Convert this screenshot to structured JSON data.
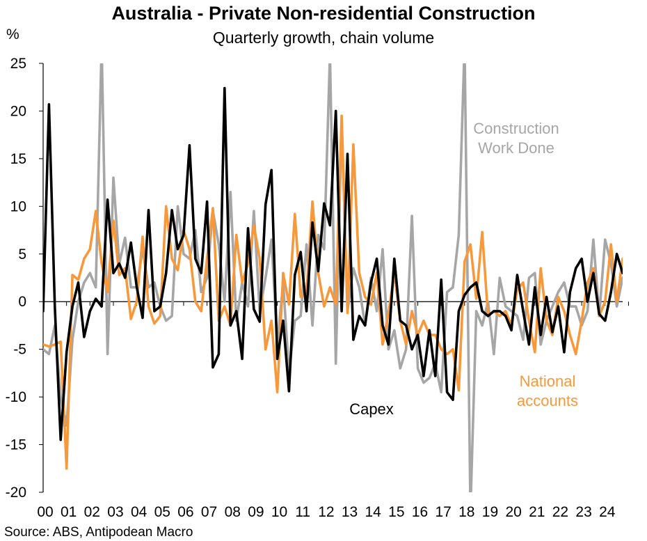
{
  "chart_data": {
    "type": "line",
    "title": "Australia - Private Non-residential Construction",
    "subtitle": "Quarterly growth, chain volume",
    "ylabel": "%",
    "xlabel": "",
    "ylim": [
      -20,
      25
    ],
    "yticks": [
      25,
      20,
      15,
      10,
      5,
      0,
      -5,
      -10,
      -15,
      -20
    ],
    "year_labels": [
      "00",
      "01",
      "02",
      "03",
      "04",
      "05",
      "06",
      "07",
      "08",
      "09",
      "10",
      "11",
      "12",
      "13",
      "14",
      "15",
      "16",
      "17",
      "18",
      "19",
      "20",
      "21",
      "22",
      "23",
      "24"
    ],
    "x_start": 2000.0,
    "x_step": 0.25,
    "source": "Source: ABS, Antipodean Macro",
    "colors": {
      "capex": "#000000",
      "national": "#f7993b",
      "work_done": "#a6a6a6",
      "axis": "#000000"
    },
    "annotations": [
      {
        "key": "work_done",
        "lines": [
          "Construction",
          "Work Done"
        ]
      },
      {
        "key": "national",
        "lines": [
          "National",
          "accounts"
        ]
      },
      {
        "key": "capex",
        "lines": [
          "Capex"
        ]
      }
    ],
    "series": [
      {
        "key": "work_done",
        "name": "Construction Work Done",
        "values": [
          -5.0,
          -5.5,
          -2.5,
          -10.0,
          -13.0,
          -4.0,
          0.0,
          2.0,
          3.0,
          1.5,
          27.0,
          -5.5,
          13.0,
          4.0,
          6.7,
          1.5,
          1.5,
          5.5,
          1.5,
          2.0,
          -0.5,
          -2.0,
          -1.5,
          10.0,
          5.0,
          4.5,
          7.5,
          1.0,
          2.5,
          9.5,
          6.0,
          0.0,
          11.5,
          -2.0,
          2.0,
          -0.5,
          9.5,
          -1.0,
          2.5,
          6.5,
          -4.5,
          2.0,
          -7.5,
          -2.0,
          -1.5,
          6.0,
          -2.5,
          7.0,
          5.5,
          26.0,
          -6.5,
          19.0,
          -1.0,
          3.5,
          1.5,
          -2.5,
          2.5,
          -1.0,
          5.5,
          -5.0,
          -3.0,
          -7.0,
          -5.0,
          9.0,
          -7.0,
          -8.5,
          -8.0,
          -6.5,
          -9.5,
          1.0,
          1.5,
          7.0,
          27.0,
          -22.0,
          -1.0,
          -2.5,
          0.0,
          -5.5,
          2.5,
          -0.5,
          -1.0,
          -1.5,
          -4.0,
          2.5,
          3.0,
          -4.5,
          -2.0,
          -0.5,
          1.0,
          2.0,
          -0.5,
          -0.5,
          -2.5,
          -1.0,
          6.5,
          -1.5,
          6.5,
          4.0,
          -0.5,
          2.5
        ]
      },
      {
        "key": "national",
        "name": "National accounts",
        "values": [
          -4.5,
          -4.7,
          -4.5,
          -4.2,
          -17.5,
          2.8,
          2.3,
          4.5,
          5.5,
          9.5,
          4.0,
          1.0,
          8.5,
          2.8,
          3.5,
          -1.8,
          0.0,
          6.8,
          -0.5,
          -2.3,
          -1.5,
          10.0,
          4.5,
          3.3,
          7.5,
          5.5,
          0.0,
          -1.0,
          4.5,
          9.8,
          -2.0,
          -0.5,
          -2.5,
          7.0,
          2.0,
          4.0,
          8.0,
          4.5,
          -5.0,
          -2.0,
          -9.5,
          3.0,
          -0.3,
          9.2,
          0.5,
          1.0,
          10.5,
          3.0,
          -0.5,
          1.5,
          -0.3,
          19.5,
          -1.2,
          16.5,
          3.0,
          0.5,
          -0.3,
          3.0,
          -4.5,
          -1.2,
          3.0,
          -2.0,
          -4.5,
          -1.0,
          -3.5,
          -2.0,
          -3.5,
          -3.5,
          -5.0,
          -5.5,
          -5.0,
          -9.3,
          4.2,
          6.0,
          0.3,
          7.3,
          -1.5,
          -1.0,
          -1.5,
          -1.0,
          -2.5,
          1.3,
          2.0,
          -2.0,
          -5.3,
          3.5,
          -2.0,
          -3.5,
          0.5,
          -1.0,
          -3.5,
          -5.5,
          -2.0,
          2.0,
          3.5,
          -1.5,
          0.0,
          6.0,
          0.0,
          4.5,
          1.0,
          0.5
        ]
      },
      {
        "key": "capex",
        "name": "Capex",
        "values": [
          -1.0,
          20.7,
          -0.5,
          -14.5,
          -5.3,
          -0.5,
          2.0,
          -3.7,
          -1.0,
          0.3,
          -0.5,
          10.7,
          3.0,
          4.0,
          2.5,
          6.2,
          1.5,
          -1.7,
          9.6,
          -1.0,
          -0.5,
          3.0,
          9.6,
          5.5,
          7.0,
          16.4,
          4.5,
          3.0,
          10.5,
          -6.9,
          -5.5,
          22.4,
          -2.5,
          -1.0,
          -6.0,
          7.7,
          -0.8,
          -2.1,
          10.2,
          13.8,
          -6.0,
          -2.0,
          -9.4,
          2.8,
          5.2,
          -1.0,
          8.3,
          3.2,
          10.3,
          8.0,
          20.0,
          -1.0,
          15.5,
          -4.0,
          -1.5,
          -2.5,
          2.0,
          4.5,
          -2.5,
          -4.5,
          4.5,
          -2.0,
          -2.5,
          -5.0,
          -3.5,
          -7.8,
          -3.0,
          -7.8,
          2.3,
          -9.5,
          -10.3,
          -1.0,
          0.7,
          1.5,
          2.0,
          -1.0,
          -1.5,
          -1.0,
          -1.0,
          -1.5,
          -3.0,
          2.8,
          -1.0,
          -4.5,
          1.5,
          -3.5,
          0.5,
          -3.2,
          -0.5,
          -5.3,
          1.0,
          3.5,
          4.5,
          0.0,
          3.0,
          -1.3,
          -2.0,
          1.0,
          5.0,
          3.0,
          4.5,
          0.5,
          1.5
        ]
      }
    ]
  }
}
